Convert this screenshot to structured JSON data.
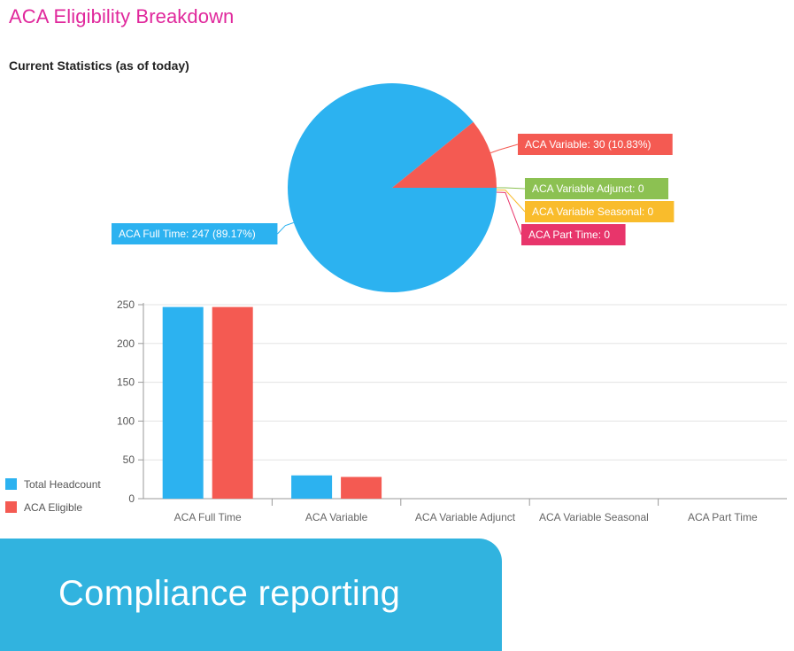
{
  "page": {
    "title": "ACA Eligibility Breakdown",
    "subtitle": "Current Statistics (as of today)"
  },
  "banner": {
    "text": "Compliance reporting",
    "color": "#31b3df"
  },
  "chart_data": [
    {
      "type": "pie",
      "slices": [
        {
          "label": "ACA Full Time: 247 (89.17%)",
          "value": 247,
          "color": "#2cb2f0"
        },
        {
          "label": "ACA Variable: 30 (10.83%)",
          "value": 30,
          "color": "#f45a52"
        },
        {
          "label": "ACA Variable Adjunct: 0",
          "value": 0,
          "color": "#8cc152"
        },
        {
          "label": "ACA Variable Seasonal: 0",
          "value": 0,
          "color": "#f9bc2c"
        },
        {
          "label": "ACA Part Time: 0",
          "value": 0,
          "color": "#e8356b"
        }
      ]
    },
    {
      "type": "bar",
      "categories": [
        "ACA Full Time",
        "ACA Variable",
        "ACA Variable Adjunct",
        "ACA Variable Seasonal",
        "ACA Part Time"
      ],
      "series": [
        {
          "name": "Total Headcount",
          "values": [
            247,
            30,
            0,
            0,
            0
          ],
          "color": "#2cb2f0"
        },
        {
          "name": "ACA Eligible",
          "values": [
            247,
            28,
            0,
            0,
            0
          ],
          "color": "#f45a52"
        }
      ],
      "yticks": [
        "0",
        "50",
        "100",
        "150",
        "200",
        "250"
      ],
      "ylim": [
        0,
        250
      ],
      "grid": true,
      "legend": "bottom-left"
    }
  ]
}
